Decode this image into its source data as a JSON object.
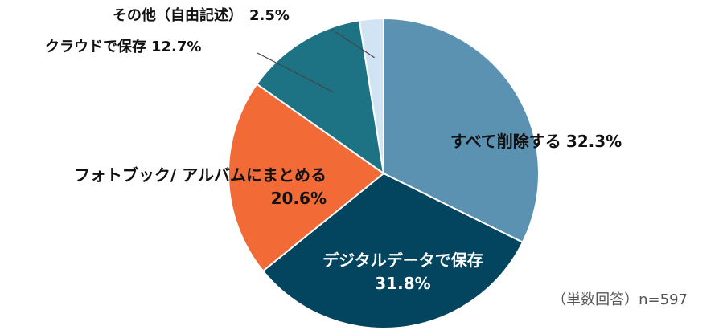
{
  "chart_data": {
    "type": "pie",
    "start_angle_deg": 0,
    "direction": "clockwise",
    "slices": [
      {
        "label": "すべて削除する",
        "value": 32.3,
        "value_label": "32.3%",
        "color": "#5b92b2"
      },
      {
        "label": "デジタルデータで保存",
        "value": 31.8,
        "value_label": "31.8%",
        "color": "#03445f"
      },
      {
        "label": "フォトブック/ アルバムにまとめる",
        "value": 20.6,
        "value_label": "20.6%",
        "color": "#f26b37"
      },
      {
        "label": "クラウドで保存",
        "value": 12.7,
        "value_label": "12.7%",
        "color": "#1d7383"
      },
      {
        "label": "その他（自由記述）",
        "value": 2.5,
        "value_label": "2.5%",
        "color": "#d1e4f4"
      }
    ],
    "slice_border_color": "#ffffff",
    "annotation": "（単数回答）n=597"
  }
}
